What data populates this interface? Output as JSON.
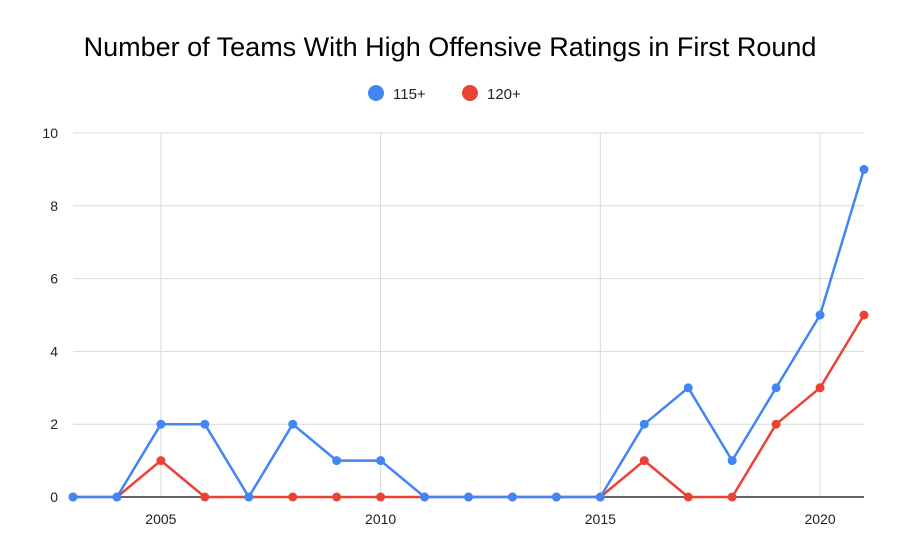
{
  "chart_data": {
    "type": "line",
    "title": "Number of Teams With High Offensive Ratings in First Round",
    "xlabel": "",
    "ylabel": "",
    "x": [
      2003,
      2004,
      2005,
      2006,
      2007,
      2008,
      2009,
      2010,
      2011,
      2012,
      2013,
      2014,
      2015,
      2016,
      2017,
      2018,
      2019,
      2020,
      2021
    ],
    "xlim": [
      2003,
      2021
    ],
    "ylim": [
      0,
      10
    ],
    "x_ticks": [
      "2005",
      "2010",
      "2015",
      "2020"
    ],
    "x_tick_values": [
      2005,
      2010,
      2015,
      2020
    ],
    "y_ticks": [
      "0",
      "2",
      "4",
      "6",
      "8",
      "10"
    ],
    "y_tick_values": [
      0,
      2,
      4,
      6,
      8,
      10
    ],
    "grid": true,
    "legend_position": "top-center",
    "series": [
      {
        "name": "115+",
        "color": "#4285f4",
        "values": [
          0,
          0,
          2,
          2,
          0,
          2,
          1,
          1,
          0,
          0,
          0,
          0,
          0,
          2,
          3,
          1,
          3,
          5,
          9
        ]
      },
      {
        "name": "120+",
        "color": "#ea4335",
        "values": [
          0,
          0,
          1,
          0,
          0,
          0,
          0,
          0,
          0,
          0,
          0,
          0,
          0,
          1,
          0,
          0,
          2,
          3,
          5
        ]
      }
    ]
  }
}
